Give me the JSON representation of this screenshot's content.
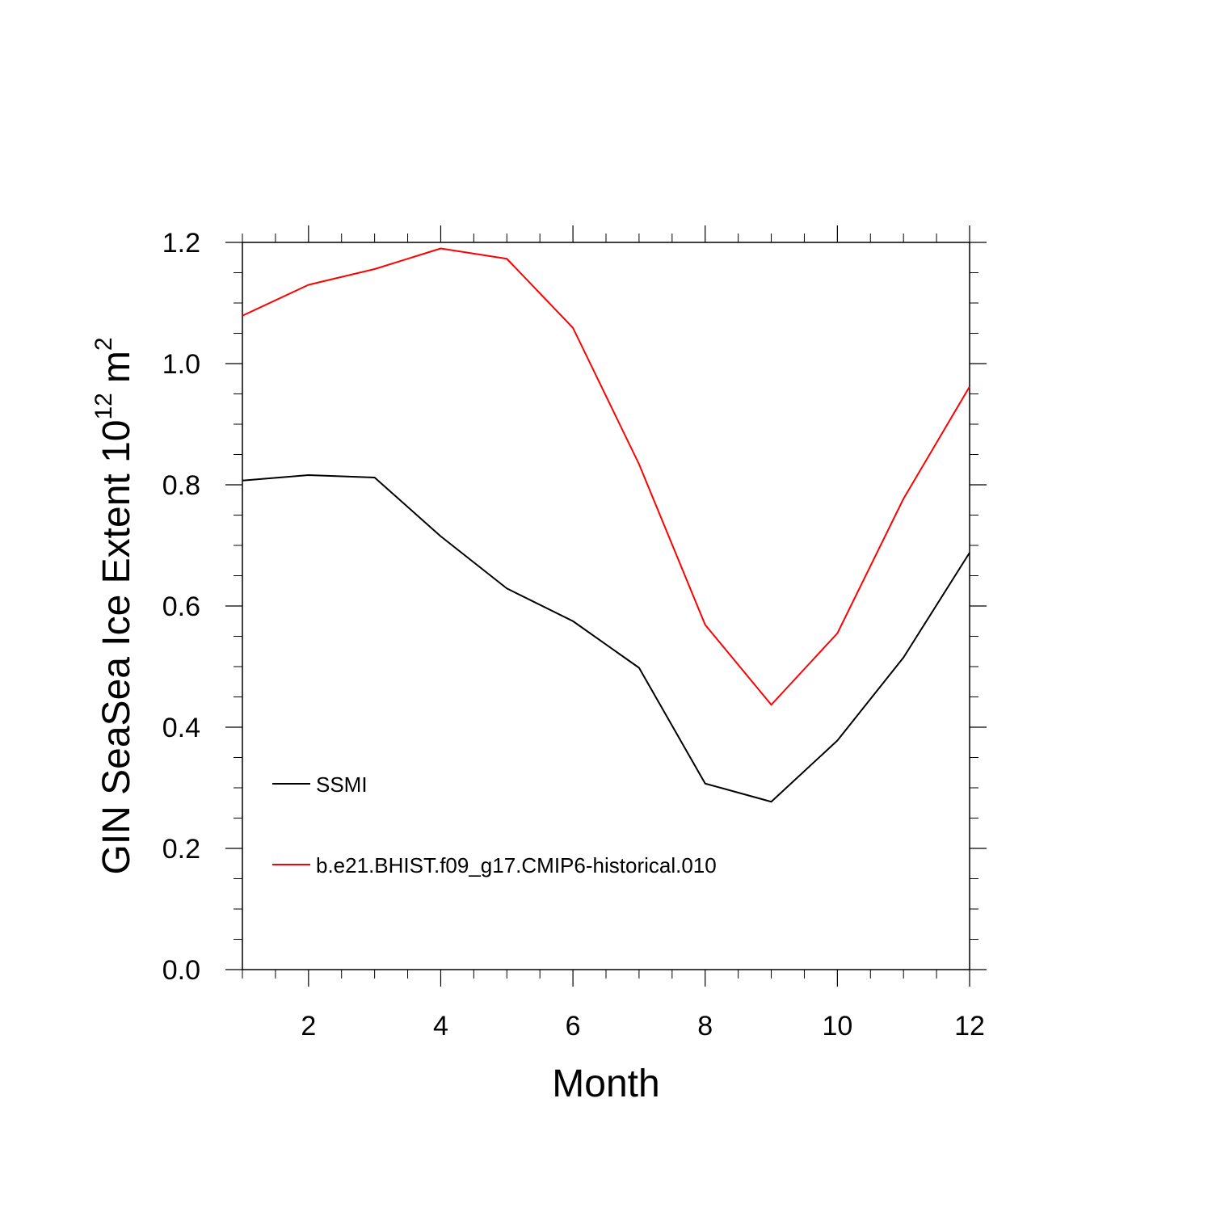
{
  "chart_data": {
    "type": "line",
    "xlabel": "Month",
    "ylabel_main": "GIN SeaSea Ice Extent 10",
    "ylabel_sup": "12",
    "ylabel_unit": "m",
    "ylabel_unit_sup": "2",
    "xlim": [
      1,
      12
    ],
    "ylim": [
      0.0,
      1.2
    ],
    "x_ticks": [
      2,
      4,
      6,
      8,
      10,
      12
    ],
    "x_tick_labels": [
      "2",
      "4",
      "6",
      "8",
      "10",
      "12"
    ],
    "y_ticks": [
      0.0,
      0.2,
      0.4,
      0.6,
      0.8,
      1.0,
      1.2
    ],
    "y_tick_labels": [
      "0.0",
      "0.2",
      "0.4",
      "0.6",
      "0.8",
      "1.0",
      "1.2"
    ],
    "grid": false,
    "legend_position": "lower-left",
    "x": [
      1,
      2,
      3,
      4,
      5,
      6,
      7,
      8,
      9,
      10,
      11,
      12
    ],
    "series": [
      {
        "name": "SSMI",
        "color": "#000000",
        "values": [
          0.807,
          0.816,
          0.812,
          0.715,
          0.629,
          0.575,
          0.498,
          0.307,
          0.277,
          0.378,
          0.515,
          0.688
        ]
      },
      {
        "name": "b.e21.BHIST.f09_g17.CMIP6-historical.010",
        "color": "#ff0000",
        "values": [
          1.079,
          1.13,
          1.156,
          1.19,
          1.173,
          1.059,
          0.834,
          0.569,
          0.437,
          0.555,
          0.777,
          0.962
        ]
      }
    ]
  }
}
